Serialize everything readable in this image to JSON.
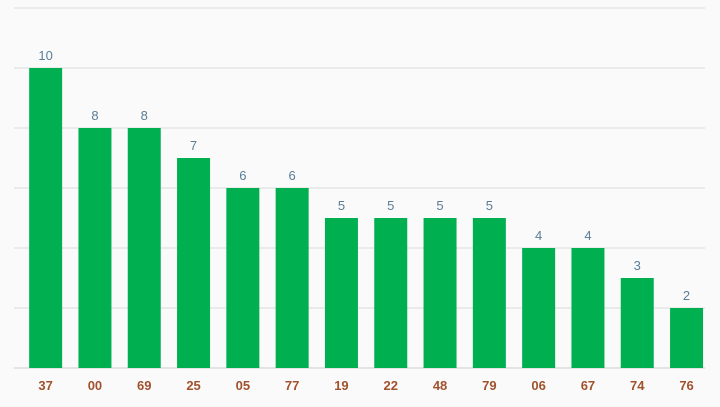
{
  "chart_data": {
    "type": "bar",
    "categories": [
      "37",
      "00",
      "69",
      "25",
      "05",
      "77",
      "19",
      "22",
      "48",
      "79",
      "06",
      "67",
      "74",
      "76"
    ],
    "values": [
      10,
      8,
      8,
      7,
      6,
      6,
      5,
      5,
      5,
      5,
      4,
      4,
      3,
      2
    ],
    "ylim": [
      0,
      12
    ],
    "grid": true,
    "legend": "none",
    "show_value_labels": true
  },
  "colors": {
    "bar": "#00b050",
    "value_label": "#5a7d96",
    "tick_label": "#a0522d",
    "grid": "#d9d9d9",
    "axis": "#cccccc",
    "background": "#fafafa"
  }
}
